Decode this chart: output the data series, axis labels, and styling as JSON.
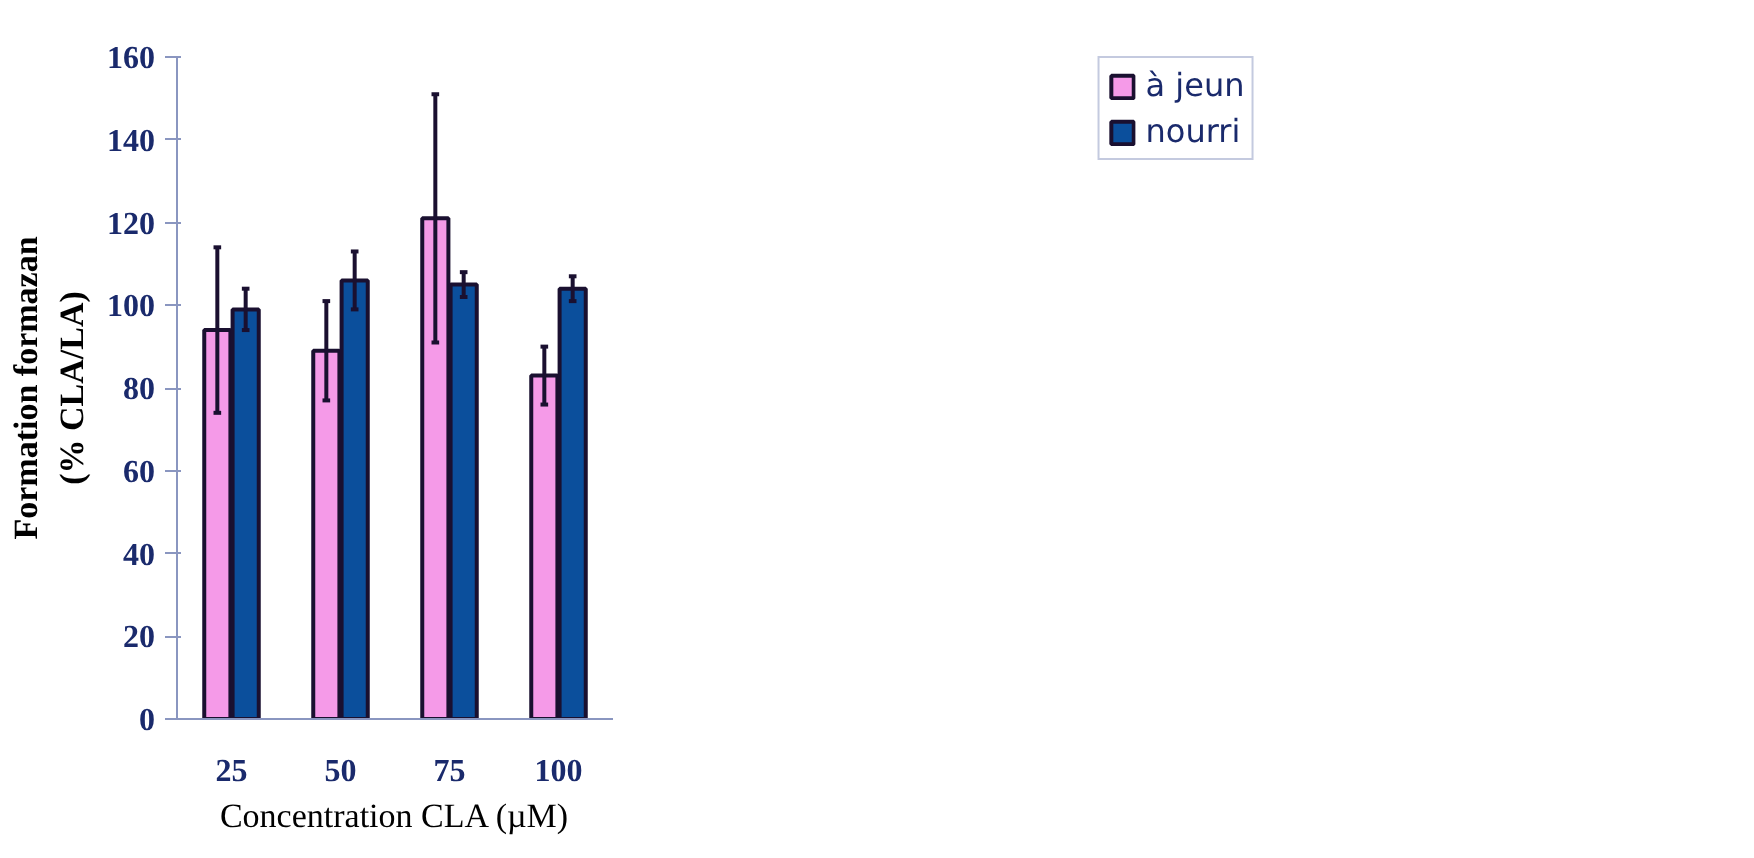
{
  "chart_data": {
    "type": "bar",
    "xlabel": "Concentration CLA (µM)",
    "ylabel": "Formation formazan\n(% CLA/LA)",
    "categories": [
      "25",
      "50",
      "75",
      "100"
    ],
    "series": [
      {
        "name": "à jeun",
        "color": "#f59ae8",
        "values": [
          94,
          89,
          121,
          83
        ],
        "errors": [
          20,
          12,
          30,
          7
        ]
      },
      {
        "name": "nourri",
        "color": "#0b4f9c",
        "values": [
          99,
          106,
          105,
          104
        ],
        "errors": [
          5,
          7,
          3,
          3
        ]
      }
    ],
    "ylim": [
      0,
      160
    ],
    "yticks": [
      0,
      20,
      40,
      60,
      80,
      100,
      120,
      140,
      160
    ],
    "grid": false,
    "legend": "top right"
  }
}
